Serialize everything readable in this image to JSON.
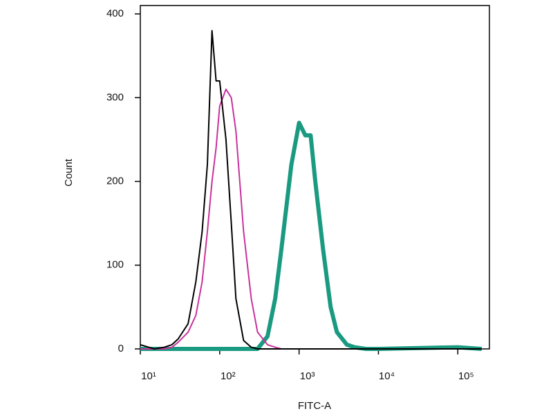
{
  "chart_data": {
    "type": "line",
    "x_label": "FITC-A",
    "y_label": "Count",
    "x": [
      10,
      15,
      20,
      25,
      30,
      40,
      50,
      60,
      70,
      80,
      90,
      100,
      120,
      140,
      160,
      200,
      250,
      300,
      400,
      500,
      600,
      800,
      1000,
      1200,
      1400,
      1600,
      2000,
      2500,
      3000,
      4000,
      5000,
      7000,
      10000,
      100000,
      200000
    ],
    "series": [
      {
        "color": "#000000",
        "width": 2,
        "values": [
          5,
          0,
          2,
          5,
          12,
          30,
          80,
          140,
          220,
          380,
          320,
          320,
          250,
          150,
          60,
          10,
          2,
          0,
          0,
          0,
          0,
          0,
          0,
          0,
          0,
          0,
          0,
          0,
          0,
          0,
          0,
          0,
          0,
          0,
          0
        ]
      },
      {
        "color": "#c8329a",
        "width": 2,
        "values": [
          0,
          0,
          0,
          2,
          8,
          20,
          40,
          80,
          140,
          200,
          240,
          290,
          310,
          300,
          260,
          140,
          60,
          20,
          5,
          2,
          0,
          0,
          0,
          0,
          0,
          0,
          0,
          0,
          0,
          0,
          0,
          0,
          0,
          0,
          0
        ]
      },
      {
        "color": "#1a9a80",
        "width": 6,
        "values": [
          0,
          0,
          0,
          0,
          0,
          0,
          0,
          0,
          0,
          0,
          0,
          0,
          0,
          0,
          0,
          0,
          0,
          0,
          15,
          60,
          120,
          220,
          270,
          255,
          255,
          200,
          120,
          50,
          20,
          5,
          2,
          0,
          0,
          2,
          0
        ]
      }
    ],
    "x_scale": "log",
    "xlim": [
      10,
      250000
    ],
    "xticks": [
      {
        "value": 10,
        "label": "10¹"
      },
      {
        "value": 100,
        "label": "10²"
      },
      {
        "value": 1000,
        "label": "10³"
      },
      {
        "value": 10000,
        "label": "10⁴"
      },
      {
        "value": 100000,
        "label": "10⁵"
      }
    ],
    "ylim": [
      0,
      410
    ],
    "yticks": [
      0,
      100,
      200,
      300,
      400
    ]
  }
}
